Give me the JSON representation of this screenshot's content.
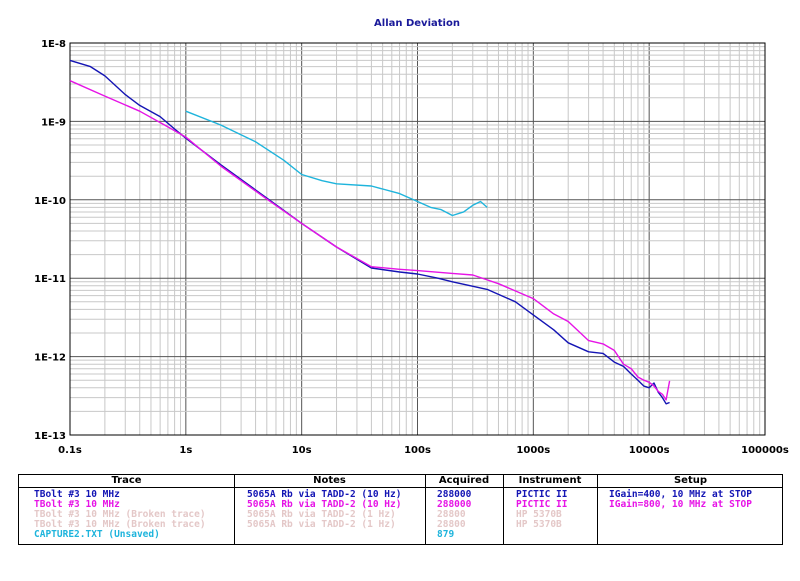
{
  "chart_data": {
    "type": "line",
    "title": "Allan Deviation",
    "xscale": "log",
    "yscale": "log",
    "xlim": [
      0.1,
      100000
    ],
    "ylim": [
      1e-13,
      1e-08
    ],
    "grid": true,
    "x_tick_labels": [
      "0.1s",
      "1s",
      "10s",
      "100s",
      "1000s",
      "10000s",
      "100000s"
    ],
    "y_tick_labels": [
      "1E-13",
      "1E-12",
      "1E-11",
      "1E-10",
      "1E-9",
      "1E-8"
    ],
    "series": [
      {
        "name": "TBolt #3 10 MHz",
        "color": "#1414b4",
        "points": [
          [
            0.1,
            6e-09
          ],
          [
            0.15,
            5e-09
          ],
          [
            0.2,
            3.8e-09
          ],
          [
            0.3,
            2.2e-09
          ],
          [
            0.4,
            1.6e-09
          ],
          [
            0.6,
            1.15e-09
          ],
          [
            0.8,
            8e-10
          ],
          [
            1,
            6.1e-10
          ],
          [
            2,
            2.8e-10
          ],
          [
            5,
            1.05e-10
          ],
          [
            10,
            5e-11
          ],
          [
            20,
            2.5e-11
          ],
          [
            40,
            1.35e-11
          ],
          [
            70,
            1.2e-11
          ],
          [
            100,
            1.13e-11
          ],
          [
            150,
            1e-11
          ],
          [
            200,
            9e-12
          ],
          [
            400,
            7.2e-12
          ],
          [
            700,
            5e-12
          ],
          [
            1000,
            3.4e-12
          ],
          [
            1500,
            2.2e-12
          ],
          [
            2000,
            1.5e-12
          ],
          [
            3000,
            1.15e-12
          ],
          [
            4000,
            1.1e-12
          ],
          [
            5000,
            8.5e-13
          ],
          [
            6000,
            7.5e-13
          ],
          [
            7000,
            6e-13
          ],
          [
            8000,
            5e-13
          ],
          [
            9000,
            4.2e-13
          ],
          [
            10000,
            4e-13
          ],
          [
            11000,
            4.6e-13
          ],
          [
            12000,
            3.5e-13
          ],
          [
            13000,
            3e-13
          ],
          [
            14000,
            2.5e-13
          ],
          [
            15000,
            2.6e-13
          ]
        ]
      },
      {
        "name": "TBolt #3 10 MHz",
        "color": "#e614e6",
        "points": [
          [
            0.1,
            3.3e-09
          ],
          [
            0.2,
            2.1e-09
          ],
          [
            0.4,
            1.35e-09
          ],
          [
            0.7,
            8.5e-10
          ],
          [
            1,
            6.3e-10
          ],
          [
            2,
            2.7e-10
          ],
          [
            5,
            1.02e-10
          ],
          [
            10,
            5e-11
          ],
          [
            20,
            2.5e-11
          ],
          [
            40,
            1.4e-11
          ],
          [
            70,
            1.3e-11
          ],
          [
            100,
            1.25e-11
          ],
          [
            200,
            1.15e-11
          ],
          [
            300,
            1.1e-11
          ],
          [
            500,
            8.5e-12
          ],
          [
            1000,
            5.5e-12
          ],
          [
            1500,
            3.5e-12
          ],
          [
            2000,
            2.8e-12
          ],
          [
            3000,
            1.6e-12
          ],
          [
            4000,
            1.45e-12
          ],
          [
            5000,
            1.2e-12
          ],
          [
            6000,
            8e-13
          ],
          [
            7000,
            7e-13
          ],
          [
            8000,
            5.5e-13
          ],
          [
            9000,
            5e-13
          ],
          [
            10000,
            4.7e-13
          ],
          [
            11000,
            4.2e-13
          ],
          [
            12000,
            3.6e-13
          ],
          [
            13000,
            3.3e-13
          ],
          [
            14000,
            2.8e-13
          ],
          [
            15000,
            4.9e-13
          ]
        ]
      },
      {
        "name": "CAPTURE2.TXT (Unsaved)",
        "color": "#1eb4dc",
        "points": [
          [
            1,
            1.35e-09
          ],
          [
            2,
            9e-10
          ],
          [
            4,
            5.5e-10
          ],
          [
            7,
            3.2e-10
          ],
          [
            10,
            2.1e-10
          ],
          [
            15,
            1.75e-10
          ],
          [
            20,
            1.6e-10
          ],
          [
            40,
            1.5e-10
          ],
          [
            70,
            1.2e-10
          ],
          [
            100,
            9.5e-11
          ],
          [
            130,
            8e-11
          ],
          [
            160,
            7.5e-11
          ],
          [
            200,
            6.3e-11
          ],
          [
            250,
            7e-11
          ],
          [
            300,
            8.5e-11
          ],
          [
            350,
            9.5e-11
          ],
          [
            400,
            8e-11
          ]
        ]
      }
    ]
  },
  "legend": {
    "headers": {
      "trace": "Trace",
      "notes": "Notes",
      "acquired": "Acquired",
      "instrument": "Instrument",
      "setup": "Setup"
    },
    "rows": [
      {
        "trace": "TBolt #3 10 MHz",
        "notes": "5065A Rb via TADD-2 (10 Hz)",
        "acquired": "288000",
        "instrument": "PICTIC II",
        "setup": "IGain=400, 10 MHz at STOP",
        "color": "#1414b4"
      },
      {
        "trace": "TBolt #3 10 MHz",
        "notes": "5065A Rb via TADD-2 (10 Hz)",
        "acquired": "288000",
        "instrument": "PICTIC II",
        "setup": "IGain=800, 10 MHz at STOP",
        "color": "#e614e6"
      },
      {
        "trace": "TBolt #3 10 MHz (Broken trace)",
        "notes": "5065A Rb via TADD-2 (1 Hz)",
        "acquired": "28800",
        "instrument": "HP 5370B",
        "setup": "",
        "color": "#e4c8c8"
      },
      {
        "trace": "TBolt #3 10 MHz (Broken trace)",
        "notes": "5065A Rb via TADD-2 (1 Hz)",
        "acquired": "28800",
        "instrument": "HP 5370B",
        "setup": "",
        "color": "#e4c8c8"
      },
      {
        "trace": "CAPTURE2.TXT (Unsaved)",
        "notes": "",
        "acquired": "879",
        "instrument": "",
        "setup": "",
        "color": "#1eb4dc"
      }
    ]
  }
}
